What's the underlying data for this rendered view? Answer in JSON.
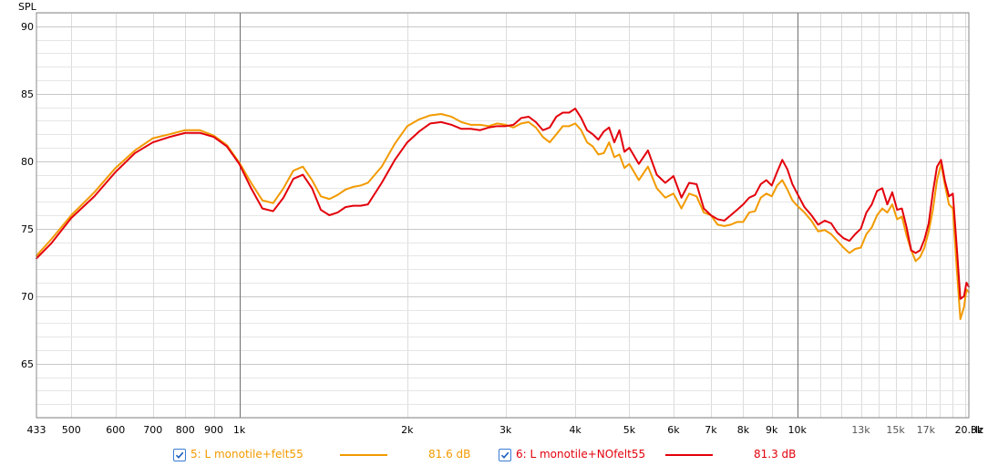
{
  "chart_data": {
    "type": "line",
    "ylabel": "SPL",
    "xunit": "Hz",
    "xscale": "log",
    "xlim": [
      433,
      20300
    ],
    "ylim": [
      61,
      91
    ],
    "yticks": [
      65,
      70,
      75,
      80,
      85,
      90
    ],
    "xticks": [
      {
        "v": 433,
        "label": "433"
      },
      {
        "v": 500,
        "label": "500"
      },
      {
        "v": 600,
        "label": "600"
      },
      {
        "v": 700,
        "label": "700"
      },
      {
        "v": 800,
        "label": "800"
      },
      {
        "v": 900,
        "label": "900"
      },
      {
        "v": 1000,
        "label": "1k"
      },
      {
        "v": 2000,
        "label": "2k"
      },
      {
        "v": 3000,
        "label": "3k"
      },
      {
        "v": 4000,
        "label": "4k"
      },
      {
        "v": 5000,
        "label": "5k"
      },
      {
        "v": 6000,
        "label": "6k"
      },
      {
        "v": 7000,
        "label": "7k"
      },
      {
        "v": 8000,
        "label": "8k"
      },
      {
        "v": 9000,
        "label": "9k"
      },
      {
        "v": 10000,
        "label": "10k"
      },
      {
        "v": 13000,
        "label": "13k"
      },
      {
        "v": 15000,
        "label": "15k"
      },
      {
        "v": 17000,
        "label": "17k"
      },
      {
        "v": 20300,
        "label": "20.3k"
      }
    ],
    "xunit_label": "Hz",
    "grid": true,
    "series": [
      {
        "name": "5: L monotile+felt55",
        "color": "#f29a00",
        "avg_label": "81.6 dB",
        "x": [
          433,
          460,
          500,
          550,
          600,
          650,
          700,
          750,
          800,
          850,
          900,
          950,
          1000,
          1050,
          1100,
          1150,
          1200,
          1250,
          1300,
          1350,
          1400,
          1450,
          1500,
          1550,
          1600,
          1650,
          1700,
          1800,
          1900,
          2000,
          2100,
          2200,
          2300,
          2400,
          2500,
          2600,
          2700,
          2800,
          2900,
          3000,
          3100,
          3200,
          3300,
          3400,
          3500,
          3600,
          3700,
          3800,
          3900,
          4000,
          4100,
          4200,
          4300,
          4400,
          4500,
          4600,
          4700,
          4800,
          4900,
          5000,
          5200,
          5400,
          5600,
          5800,
          6000,
          6200,
          6400,
          6600,
          6800,
          7000,
          7200,
          7400,
          7600,
          7800,
          8000,
          8200,
          8400,
          8600,
          8800,
          9000,
          9200,
          9400,
          9600,
          9800,
          10000,
          10300,
          10600,
          10900,
          11200,
          11500,
          11800,
          12100,
          12400,
          12700,
          13000,
          13300,
          13600,
          13900,
          14200,
          14500,
          14800,
          15100,
          15400,
          15700,
          16000,
          16300,
          16600,
          16900,
          17200,
          17500,
          17800,
          18100,
          18400,
          18700,
          19000,
          19300,
          19600,
          19900,
          20100,
          20300
        ],
        "y": [
          73.0,
          74.2,
          76.0,
          77.7,
          79.5,
          80.8,
          81.7,
          82.0,
          82.3,
          82.3,
          81.9,
          81.2,
          79.9,
          78.4,
          77.1,
          76.9,
          78.0,
          79.3,
          79.6,
          78.6,
          77.4,
          77.2,
          77.5,
          77.9,
          78.1,
          78.2,
          78.4,
          79.6,
          81.3,
          82.6,
          83.1,
          83.4,
          83.5,
          83.3,
          82.9,
          82.7,
          82.7,
          82.6,
          82.8,
          82.7,
          82.5,
          82.8,
          82.9,
          82.5,
          81.8,
          81.4,
          82.0,
          82.6,
          82.6,
          82.8,
          82.3,
          81.4,
          81.1,
          80.5,
          80.6,
          81.4,
          80.3,
          80.5,
          79.5,
          79.8,
          78.6,
          79.6,
          78.0,
          77.3,
          77.6,
          76.5,
          77.6,
          77.4,
          76.2,
          76.0,
          75.3,
          75.2,
          75.3,
          75.5,
          75.5,
          76.2,
          76.3,
          77.3,
          77.6,
          77.4,
          78.2,
          78.6,
          77.9,
          77.1,
          76.7,
          76.2,
          75.6,
          74.8,
          74.9,
          74.6,
          74.1,
          73.6,
          73.2,
          73.5,
          73.6,
          74.6,
          75.1,
          76.0,
          76.5,
          76.2,
          76.8,
          75.7,
          75.9,
          74.5,
          73.4,
          72.6,
          72.9,
          73.6,
          74.8,
          76.4,
          78.6,
          79.8,
          78.2,
          76.8,
          76.5,
          72.2,
          68.3,
          69.2,
          70.5,
          70.3
        ]
      },
      {
        "name": "6: L monotile+NOfelt55",
        "color": "#e3000b",
        "avg_label": "81.3 dB",
        "x": [
          433,
          460,
          500,
          550,
          600,
          650,
          700,
          750,
          800,
          850,
          900,
          950,
          1000,
          1050,
          1100,
          1150,
          1200,
          1250,
          1300,
          1350,
          1400,
          1450,
          1500,
          1550,
          1600,
          1650,
          1700,
          1800,
          1900,
          2000,
          2100,
          2200,
          2300,
          2400,
          2500,
          2600,
          2700,
          2800,
          2900,
          3000,
          3100,
          3200,
          3300,
          3400,
          3500,
          3600,
          3700,
          3800,
          3900,
          4000,
          4100,
          4200,
          4300,
          4400,
          4500,
          4600,
          4700,
          4800,
          4900,
          5000,
          5200,
          5400,
          5600,
          5800,
          6000,
          6200,
          6400,
          6600,
          6800,
          7000,
          7200,
          7400,
          7600,
          7800,
          8000,
          8200,
          8400,
          8600,
          8800,
          9000,
          9200,
          9400,
          9600,
          9800,
          10000,
          10300,
          10600,
          10900,
          11200,
          11500,
          11800,
          12100,
          12400,
          12700,
          13000,
          13300,
          13600,
          13900,
          14200,
          14500,
          14800,
          15100,
          15400,
          15700,
          16000,
          16300,
          16600,
          16900,
          17200,
          17500,
          17800,
          18100,
          18400,
          18700,
          19000,
          19300,
          19600,
          19900,
          20100,
          20300
        ],
        "y": [
          72.8,
          73.9,
          75.8,
          77.4,
          79.2,
          80.6,
          81.4,
          81.8,
          82.1,
          82.1,
          81.8,
          81.1,
          79.8,
          78.0,
          76.5,
          76.3,
          77.3,
          78.7,
          79.0,
          78.0,
          76.4,
          76.0,
          76.2,
          76.6,
          76.7,
          76.7,
          76.8,
          78.4,
          80.1,
          81.4,
          82.2,
          82.8,
          82.9,
          82.7,
          82.4,
          82.4,
          82.3,
          82.5,
          82.6,
          82.6,
          82.7,
          83.2,
          83.3,
          82.9,
          82.3,
          82.5,
          83.3,
          83.6,
          83.6,
          83.9,
          83.2,
          82.3,
          82.0,
          81.6,
          82.2,
          82.5,
          81.4,
          82.3,
          80.7,
          81.0,
          79.8,
          80.8,
          79.0,
          78.4,
          78.9,
          77.3,
          78.4,
          78.3,
          76.5,
          76.0,
          75.7,
          75.6,
          76.0,
          76.4,
          76.8,
          77.3,
          77.5,
          78.3,
          78.6,
          78.2,
          79.2,
          80.1,
          79.4,
          78.3,
          77.6,
          76.6,
          76.0,
          75.3,
          75.6,
          75.4,
          74.7,
          74.3,
          74.1,
          74.6,
          75.0,
          76.2,
          76.8,
          77.8,
          78.0,
          76.8,
          77.7,
          76.4,
          76.5,
          75.1,
          73.4,
          73.2,
          73.4,
          74.2,
          75.4,
          77.7,
          79.6,
          80.1,
          78.5,
          77.4,
          77.6,
          73.8,
          69.8,
          70.0,
          71.0,
          70.7
        ]
      }
    ]
  }
}
